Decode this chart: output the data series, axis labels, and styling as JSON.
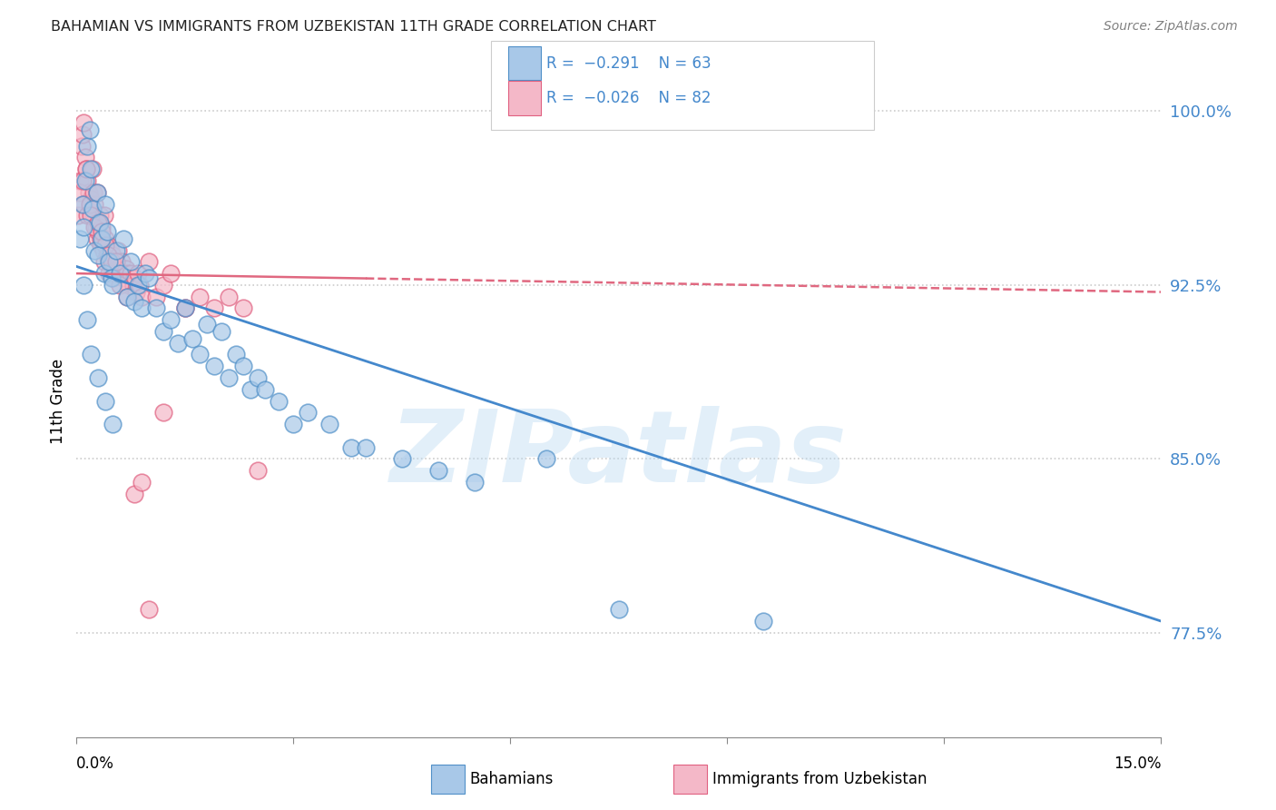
{
  "title": "BAHAMIAN VS IMMIGRANTS FROM UZBEKISTAN 11TH GRADE CORRELATION CHART",
  "source": "Source: ZipAtlas.com",
  "ylabel": "11th Grade",
  "xlim": [
    0.0,
    15.0
  ],
  "ylim": [
    73.0,
    102.0
  ],
  "yticks": [
    77.5,
    85.0,
    92.5,
    100.0
  ],
  "ytick_labels": [
    "77.5%",
    "85.0%",
    "92.5%",
    "100.0%"
  ],
  "r_blue": -0.291,
  "n_blue": 63,
  "r_pink": -0.026,
  "n_pink": 82,
  "blue_color": "#a8c8e8",
  "pink_color": "#f4b8c8",
  "blue_edge_color": "#5090c8",
  "pink_edge_color": "#e06080",
  "blue_line_color": "#4488cc",
  "pink_line_color": "#e06880",
  "legend_blue_label": "Bahamians",
  "legend_pink_label": "Immigrants from Uzbekistan",
  "watermark": "ZIPatlas",
  "blue_line_x0": 0.0,
  "blue_line_y0": 93.3,
  "blue_line_x1": 15.0,
  "blue_line_y1": 78.0,
  "pink_line_x0": 0.0,
  "pink_line_y0": 93.0,
  "pink_line_x1": 15.0,
  "pink_line_y1": 92.2,
  "pink_solid_end": 4.0,
  "blue_points_x": [
    0.05,
    0.08,
    0.1,
    0.12,
    0.15,
    0.18,
    0.2,
    0.22,
    0.25,
    0.28,
    0.3,
    0.32,
    0.35,
    0.38,
    0.4,
    0.42,
    0.45,
    0.48,
    0.5,
    0.55,
    0.6,
    0.65,
    0.7,
    0.75,
    0.8,
    0.85,
    0.9,
    0.95,
    1.0,
    1.1,
    1.2,
    1.3,
    1.4,
    1.5,
    1.6,
    1.7,
    1.8,
    1.9,
    2.0,
    2.1,
    2.2,
    2.3,
    2.4,
    2.5,
    2.6,
    2.8,
    3.0,
    3.2,
    3.5,
    3.8,
    4.0,
    4.5,
    5.0,
    5.5,
    6.5,
    7.5,
    9.5,
    0.1,
    0.15,
    0.2,
    0.3,
    0.4,
    0.5
  ],
  "blue_points_y": [
    94.5,
    96.0,
    95.0,
    97.0,
    98.5,
    99.2,
    97.5,
    95.8,
    94.0,
    96.5,
    93.8,
    95.2,
    94.5,
    93.0,
    96.0,
    94.8,
    93.5,
    92.8,
    92.5,
    94.0,
    93.0,
    94.5,
    92.0,
    93.5,
    91.8,
    92.5,
    91.5,
    93.0,
    92.8,
    91.5,
    90.5,
    91.0,
    90.0,
    91.5,
    90.2,
    89.5,
    90.8,
    89.0,
    90.5,
    88.5,
    89.5,
    89.0,
    88.0,
    88.5,
    88.0,
    87.5,
    86.5,
    87.0,
    86.5,
    85.5,
    85.5,
    85.0,
    84.5,
    84.0,
    85.0,
    78.5,
    78.0,
    92.5,
    91.0,
    89.5,
    88.5,
    87.5,
    86.5
  ],
  "pink_points_x": [
    0.02,
    0.05,
    0.07,
    0.08,
    0.1,
    0.12,
    0.13,
    0.15,
    0.17,
    0.18,
    0.2,
    0.22,
    0.23,
    0.25,
    0.27,
    0.28,
    0.3,
    0.32,
    0.33,
    0.35,
    0.37,
    0.38,
    0.4,
    0.42,
    0.43,
    0.45,
    0.47,
    0.48,
    0.5,
    0.53,
    0.55,
    0.57,
    0.6,
    0.62,
    0.65,
    0.68,
    0.7,
    0.72,
    0.75,
    0.78,
    0.8,
    0.83,
    0.85,
    0.88,
    0.9,
    1.0,
    1.1,
    1.2,
    1.3,
    1.5,
    1.7,
    1.9,
    2.1,
    2.3,
    2.5,
    0.05,
    0.08,
    0.1,
    0.13,
    0.15,
    0.18,
    0.2,
    0.23,
    0.25,
    0.28,
    0.3,
    0.33,
    0.35,
    0.38,
    0.4,
    0.43,
    0.45,
    0.48,
    0.5,
    0.55,
    0.6,
    0.7,
    0.8,
    0.9,
    1.0,
    1.2,
    1.5
  ],
  "pink_points_y": [
    95.5,
    97.0,
    98.5,
    99.0,
    99.5,
    98.0,
    97.5,
    97.0,
    96.5,
    95.8,
    96.2,
    97.5,
    95.5,
    96.0,
    95.0,
    94.5,
    94.8,
    95.5,
    94.2,
    95.0,
    94.0,
    95.5,
    94.5,
    93.8,
    94.2,
    93.5,
    94.0,
    93.2,
    93.8,
    93.0,
    93.5,
    94.0,
    93.0,
    93.5,
    92.8,
    93.2,
    93.0,
    92.5,
    93.0,
    92.5,
    92.8,
    92.2,
    93.0,
    92.5,
    92.0,
    93.5,
    92.0,
    92.5,
    93.0,
    91.5,
    92.0,
    91.5,
    92.0,
    91.5,
    84.5,
    96.5,
    97.0,
    96.0,
    97.5,
    95.5,
    96.0,
    95.5,
    96.5,
    95.0,
    96.5,
    95.2,
    94.5,
    94.8,
    93.5,
    94.2,
    93.8,
    93.0,
    93.5,
    92.8,
    93.5,
    92.5,
    92.0,
    83.5,
    84.0,
    78.5,
    87.0,
    91.5
  ]
}
